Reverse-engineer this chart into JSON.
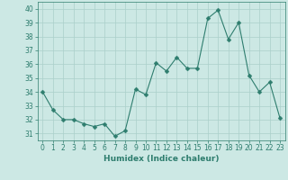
{
  "x": [
    0,
    1,
    2,
    3,
    4,
    5,
    6,
    7,
    8,
    9,
    10,
    11,
    12,
    13,
    14,
    15,
    16,
    17,
    18,
    19,
    20,
    21,
    22,
    23
  ],
  "y": [
    34,
    32.7,
    32,
    32,
    31.7,
    31.5,
    31.7,
    30.8,
    31.2,
    34.2,
    33.8,
    36.1,
    35.5,
    36.5,
    35.7,
    35.7,
    39.3,
    39.9,
    37.8,
    39.0,
    35.2,
    34.0,
    34.7,
    32.1
  ],
  "line_color": "#2e7d6e",
  "marker": "D",
  "marker_size": 2.5,
  "bg_color": "#cce8e4",
  "grid_color": "#aacfca",
  "xlabel": "Humidex (Indice chaleur)",
  "ylim": [
    30.5,
    40.5
  ],
  "xlim": [
    -0.5,
    23.5
  ],
  "yticks": [
    31,
    32,
    33,
    34,
    35,
    36,
    37,
    38,
    39,
    40
  ],
  "xticks": [
    0,
    1,
    2,
    3,
    4,
    5,
    6,
    7,
    8,
    9,
    10,
    11,
    12,
    13,
    14,
    15,
    16,
    17,
    18,
    19,
    20,
    21,
    22,
    23
  ],
  "label_fontsize": 6.5,
  "tick_fontsize": 5.5
}
